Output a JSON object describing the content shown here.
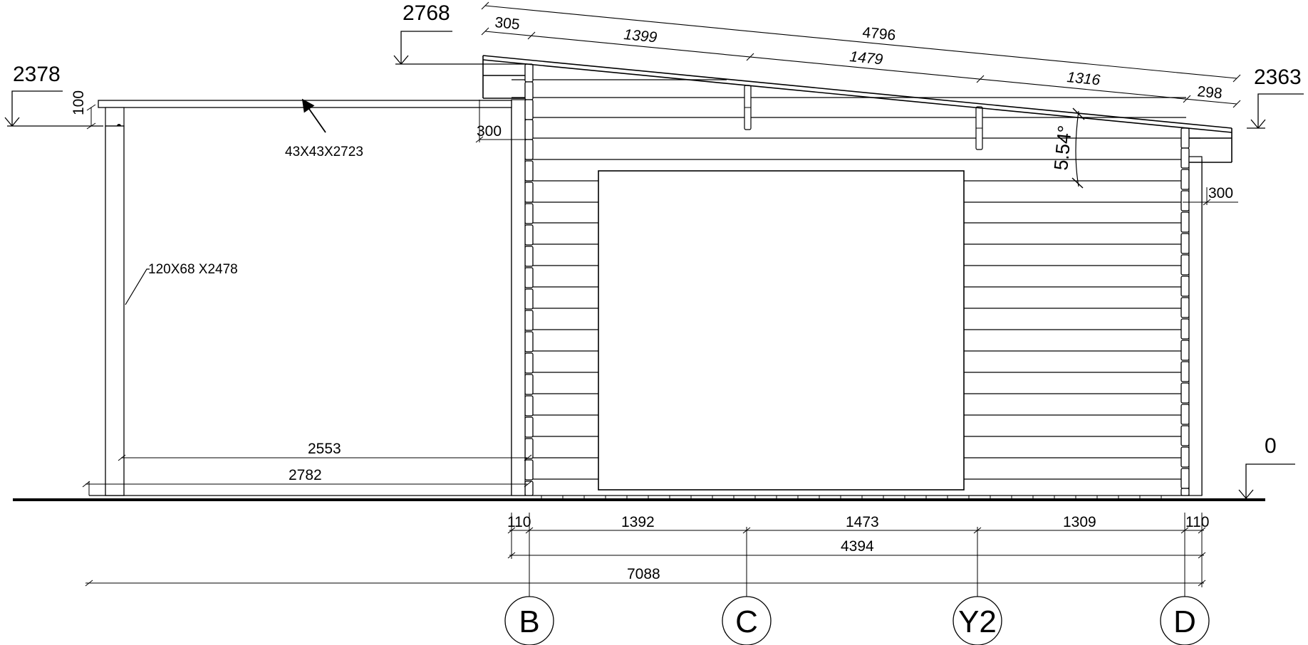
{
  "levels": {
    "roof_top": "2768",
    "canopy_top": "2378",
    "roof_low": "2363",
    "ground": "0"
  },
  "roof_dims": {
    "overall": "4796",
    "overhang_left": "305",
    "seg1": "1399",
    "seg2": "1479",
    "seg3": "1316",
    "overhang_right": "298"
  },
  "angle": "5.54°",
  "canopy": {
    "offset": "100",
    "beam_label": "43X43X2723",
    "post_label": "120X68 X2478",
    "inner_span": "2553",
    "outer_span": "2782"
  },
  "wall_offsets": {
    "left": "300",
    "right": "300"
  },
  "bottom_dims": {
    "row1": [
      "110",
      "1392",
      "1473",
      "1309",
      "110"
    ],
    "row2": "4394",
    "row3": "7088"
  },
  "grid_axes": [
    "B",
    "C",
    "Y2",
    "D"
  ]
}
